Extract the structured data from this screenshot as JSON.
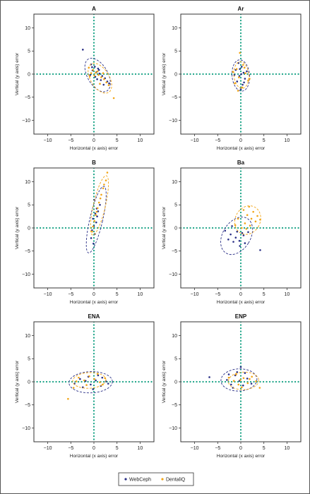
{
  "colors": {
    "webceph": "#2a2f86",
    "dentaliq": "#f2a516",
    "zero_line": "#1aa386"
  },
  "legend": {
    "webceph": "WebCeph",
    "dentaliq": "DentaliQ"
  },
  "chart_data": [
    {
      "type": "scatter",
      "title": "A",
      "xlabel": "Horizontal (x axis) error",
      "ylabel": "Vertical (y axis) error",
      "xlim": [
        -13,
        13
      ],
      "ylim": [
        -13,
        13
      ],
      "xticks": [
        -10,
        -5,
        0,
        5,
        10
      ],
      "yticks": [
        -10,
        -5,
        0,
        5,
        10
      ],
      "grid": false,
      "series": [
        {
          "name": "WebCeph",
          "points": [
            [
              -2.4,
              5.3
            ],
            [
              -0.6,
              2.1
            ],
            [
              0.2,
              1.6
            ],
            [
              0.9,
              1.2
            ],
            [
              -0.3,
              0.8
            ],
            [
              0.5,
              0.4
            ],
            [
              1.2,
              0.1
            ],
            [
              1.8,
              -0.4
            ],
            [
              0.3,
              -0.6
            ],
            [
              -0.8,
              -0.2
            ],
            [
              2.4,
              -0.9
            ],
            [
              1.5,
              -1.3
            ],
            [
              2.9,
              -1.6
            ],
            [
              0.7,
              -1.1
            ],
            [
              3.3,
              -2.0
            ],
            [
              2.1,
              -2.3
            ],
            [
              1.1,
              0.9
            ],
            [
              -0.4,
              1.5
            ]
          ],
          "ellipse": {
            "cx": 0.8,
            "cy": -0.2,
            "rx": 2.2,
            "ry": 4.0,
            "angle_deg": -30
          }
        },
        {
          "name": "DentaliQ",
          "points": [
            [
              -1.1,
              1.4
            ],
            [
              -0.2,
              0.9
            ],
            [
              0.4,
              0.3
            ],
            [
              1.0,
              -0.2
            ],
            [
              1.6,
              -0.7
            ],
            [
              2.2,
              -1.1
            ],
            [
              0.1,
              -0.3
            ],
            [
              -0.6,
              0.2
            ],
            [
              2.7,
              -1.8
            ],
            [
              3.2,
              -2.4
            ],
            [
              4.3,
              -5.2
            ],
            [
              1.3,
              -2.1
            ],
            [
              0.8,
              0.6
            ],
            [
              -0.9,
              -0.5
            ],
            [
              2.0,
              0.2
            ]
          ],
          "ellipse": {
            "cx": 1.3,
            "cy": -0.9,
            "rx": 2.0,
            "ry": 3.6,
            "angle_deg": -32
          }
        }
      ]
    },
    {
      "type": "scatter",
      "title": "Ar",
      "xlabel": "Horizontal (x axis) error",
      "ylabel": "Vertical (y axis) error",
      "xlim": [
        -13,
        13
      ],
      "ylim": [
        -13,
        13
      ],
      "xticks": [
        -10,
        -5,
        0,
        5,
        10
      ],
      "yticks": [
        -10,
        -5,
        0,
        5,
        10
      ],
      "grid": false,
      "series": [
        {
          "name": "WebCeph",
          "points": [
            [
              -0.5,
              2.4
            ],
            [
              0.2,
              1.6
            ],
            [
              -1.1,
              0.9
            ],
            [
              0.6,
              0.3
            ],
            [
              -0.3,
              -0.4
            ],
            [
              0.9,
              -1.0
            ],
            [
              -0.8,
              -1.6
            ],
            [
              0.4,
              -2.3
            ],
            [
              1.3,
              0.6
            ],
            [
              -1.4,
              -0.2
            ],
            [
              0.1,
              0.0
            ],
            [
              0.0,
              -3.3
            ],
            [
              -0.2,
              1.1
            ],
            [
              0.7,
              -1.8
            ]
          ],
          "ellipse": {
            "cx": 0.0,
            "cy": -0.3,
            "rx": 1.9,
            "ry": 3.4,
            "angle_deg": -5
          }
        },
        {
          "name": "DentaliQ",
          "points": [
            [
              -0.2,
              4.6
            ],
            [
              0.5,
              2.0
            ],
            [
              -0.9,
              1.1
            ],
            [
              1.0,
              0.2
            ],
            [
              -0.4,
              -0.7
            ],
            [
              1.6,
              -1.4
            ],
            [
              -1.3,
              -2.0
            ],
            [
              0.3,
              -2.9
            ],
            [
              1.9,
              -1.0
            ],
            [
              -1.7,
              0.5
            ],
            [
              0.8,
              1.4
            ],
            [
              -0.6,
              -3.6
            ]
          ],
          "ellipse": {
            "cx": 0.1,
            "cy": -0.2,
            "rx": 1.6,
            "ry": 2.9,
            "angle_deg": -5
          }
        }
      ]
    },
    {
      "type": "scatter",
      "title": "B",
      "xlabel": "Horizontal (x axis) error",
      "ylabel": "Vertical (y axis) error",
      "xlim": [
        -13,
        13
      ],
      "ylim": [
        -13,
        13
      ],
      "xticks": [
        -10,
        -5,
        0,
        5,
        10
      ],
      "yticks": [
        -10,
        -5,
        0,
        5,
        10
      ],
      "grid": false,
      "series": [
        {
          "name": "WebCeph",
          "points": [
            [
              0.1,
              6.1
            ],
            [
              0.6,
              4.2
            ],
            [
              0.3,
              3.1
            ],
            [
              -0.2,
              2.0
            ],
            [
              0.5,
              1.2
            ],
            [
              0.0,
              0.4
            ],
            [
              -0.4,
              -0.5
            ],
            [
              0.2,
              -1.3
            ],
            [
              -0.6,
              -2.2
            ],
            [
              0.9,
              3.6
            ],
            [
              1.3,
              5.0
            ],
            [
              -0.1,
              -3.4
            ],
            [
              0.7,
              2.5
            ]
          ],
          "ellipse": {
            "cx": 0.5,
            "cy": 1.8,
            "rx": 1.4,
            "ry": 7.4,
            "angle_deg": 13
          }
        },
        {
          "name": "DentaliQ",
          "points": [
            [
              2.9,
              12.0
            ],
            [
              2.6,
              10.3
            ],
            [
              2.0,
              8.6
            ],
            [
              1.6,
              7.2
            ],
            [
              1.1,
              5.5
            ],
            [
              0.8,
              4.3
            ],
            [
              0.4,
              2.8
            ],
            [
              0.1,
              1.5
            ],
            [
              -0.2,
              0.3
            ],
            [
              2.2,
              9.4
            ],
            [
              1.4,
              6.4
            ],
            [
              0.6,
              3.5
            ],
            [
              -0.4,
              -0.8
            ]
          ],
          "ellipse": {
            "cx": 1.2,
            "cy": 4.9,
            "rx": 1.3,
            "ry": 6.6,
            "angle_deg": 13
          }
        }
      ]
    },
    {
      "type": "scatter",
      "title": "Ba",
      "xlabel": "Horizontal (x axis) error",
      "ylabel": "Vertical (y axis) error",
      "xlim": [
        -13,
        13
      ],
      "ylim": [
        -13,
        13
      ],
      "xticks": [
        -10,
        -5,
        0,
        5,
        10
      ],
      "yticks": [
        -10,
        -5,
        0,
        5,
        10
      ],
      "grid": false,
      "series": [
        {
          "name": "WebCeph",
          "points": [
            [
              -3.4,
              -0.6
            ],
            [
              -2.2,
              -1.4
            ],
            [
              -1.1,
              -2.1
            ],
            [
              -0.3,
              -2.8
            ],
            [
              0.6,
              -1.6
            ],
            [
              -1.6,
              -3.0
            ],
            [
              -0.8,
              -0.8
            ],
            [
              0.9,
              -3.3
            ],
            [
              -2.7,
              -2.5
            ],
            [
              1.6,
              -0.9
            ],
            [
              -0.2,
              -3.9
            ],
            [
              -1.9,
              0.4
            ],
            [
              0.3,
              -1.1
            ],
            [
              4.2,
              -4.8
            ]
          ],
          "ellipse": {
            "cx": -0.9,
            "cy": -1.7,
            "rx": 3.0,
            "ry": 4.4,
            "angle_deg": 32
          }
        },
        {
          "name": "DentaliQ",
          "points": [
            [
              0.6,
              3.9
            ],
            [
              1.4,
              2.8
            ],
            [
              2.3,
              2.0
            ],
            [
              3.2,
              1.4
            ],
            [
              0.9,
              1.0
            ],
            [
              2.0,
              0.5
            ],
            [
              3.6,
              2.6
            ],
            [
              1.2,
              -0.2
            ],
            [
              -0.6,
              2.0
            ],
            [
              -1.2,
              0.6
            ],
            [
              4.2,
              1.8
            ],
            [
              2.7,
              3.5
            ],
            [
              0.2,
              0.0
            ],
            [
              1.8,
              4.6
            ]
          ],
          "ellipse": {
            "cx": 1.5,
            "cy": 1.7,
            "rx": 2.7,
            "ry": 3.2,
            "angle_deg": 28
          }
        }
      ]
    },
    {
      "type": "scatter",
      "title": "ENA",
      "xlabel": "Horizontal (x axis) error",
      "ylabel": "Vertical (y axis) error",
      "xlim": [
        -13,
        13
      ],
      "ylim": [
        -13,
        13
      ],
      "xticks": [
        -10,
        -5,
        0,
        5,
        10
      ],
      "yticks": [
        -10,
        -5,
        0,
        5,
        10
      ],
      "grid": false,
      "series": [
        {
          "name": "WebCeph",
          "points": [
            [
              -4.2,
              -0.4
            ],
            [
              -3.0,
              0.6
            ],
            [
              -1.8,
              0.2
            ],
            [
              -0.7,
              -0.6
            ],
            [
              0.4,
              0.3
            ],
            [
              1.5,
              -0.9
            ],
            [
              2.6,
              0.1
            ],
            [
              -1.2,
              1.1
            ],
            [
              -2.4,
              -1.2
            ],
            [
              0.9,
              1.4
            ],
            [
              -0.2,
              -1.6
            ],
            [
              3.1,
              -0.4
            ],
            [
              1.8,
              0.9
            ]
          ],
          "ellipse": {
            "cx": -0.7,
            "cy": -0.1,
            "rx": 4.7,
            "ry": 2.3,
            "angle_deg": -2
          }
        },
        {
          "name": "DentaliQ",
          "points": [
            [
              -5.6,
              -3.7
            ],
            [
              -4.4,
              -1.3
            ],
            [
              -3.3,
              0.9
            ],
            [
              -2.1,
              0.3
            ],
            [
              -1.0,
              1.2
            ],
            [
              0.1,
              0.6
            ],
            [
              1.3,
              -0.1
            ],
            [
              2.4,
              0.8
            ],
            [
              -1.6,
              -0.7
            ],
            [
              0.8,
              1.7
            ],
            [
              -3.8,
              0.1
            ],
            [
              1.9,
              -0.6
            ]
          ],
          "ellipse": {
            "cx": -1.0,
            "cy": 0.3,
            "rx": 3.6,
            "ry": 1.7,
            "angle_deg": -3
          }
        }
      ]
    },
    {
      "type": "scatter",
      "title": "ENP",
      "xlabel": "Horizontal (x axis) error",
      "ylabel": "Vertical (y axis) error",
      "xlim": [
        -13,
        13
      ],
      "ylim": [
        -13,
        13
      ],
      "xticks": [
        -10,
        -5,
        0,
        5,
        10
      ],
      "yticks": [
        -10,
        -5,
        0,
        5,
        10
      ],
      "grid": false,
      "series": [
        {
          "name": "WebCeph",
          "points": [
            [
              -6.8,
              1.0
            ],
            [
              -3.0,
              0.4
            ],
            [
              -2.1,
              -0.6
            ],
            [
              -1.2,
              1.4
            ],
            [
              -0.3,
              0.2
            ],
            [
              0.5,
              -0.8
            ],
            [
              1.4,
              0.7
            ],
            [
              -0.8,
              2.1
            ],
            [
              0.0,
              3.2
            ],
            [
              2.3,
              -0.4
            ],
            [
              -1.7,
              -1.3
            ],
            [
              0.9,
              1.9
            ],
            [
              -2.6,
              1.6
            ]
          ],
          "ellipse": {
            "cx": -0.4,
            "cy": 0.4,
            "rx": 3.9,
            "ry": 2.4,
            "angle_deg": -3
          }
        },
        {
          "name": "DentaliQ",
          "points": [
            [
              -2.6,
              0.9
            ],
            [
              -1.5,
              0.2
            ],
            [
              -0.5,
              -0.6
            ],
            [
              0.6,
              0.8
            ],
            [
              1.5,
              -0.3
            ],
            [
              2.4,
              1.1
            ],
            [
              3.3,
              0.1
            ],
            [
              0.2,
              -1.2
            ],
            [
              -1.0,
              1.6
            ],
            [
              1.9,
              0.6
            ],
            [
              4.1,
              -1.3
            ],
            [
              -0.1,
              0.4
            ]
          ],
          "ellipse": {
            "cx": 0.6,
            "cy": 0.2,
            "rx": 3.3,
            "ry": 1.9,
            "angle_deg": -3
          }
        }
      ]
    }
  ]
}
